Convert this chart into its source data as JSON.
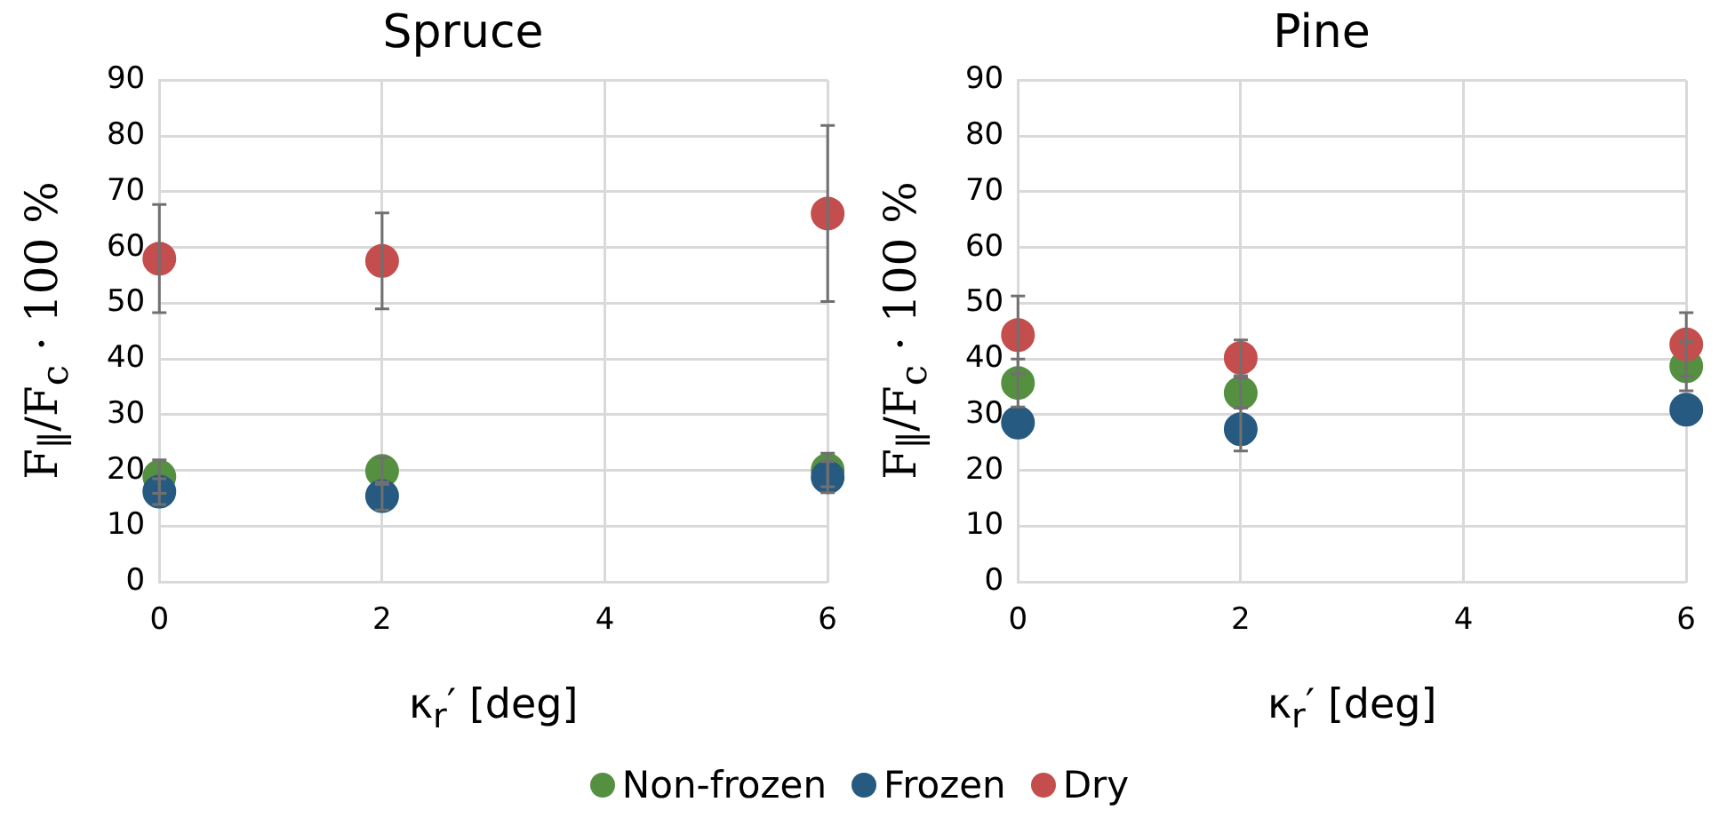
{
  "chart_data": [
    {
      "type": "scatter",
      "title": "Spruce",
      "xlabel": "κ$_{r}$′ [deg]",
      "ylabel": "F$_{∥}$/F$_{c}$ · 100 %",
      "xlim": [
        0,
        6
      ],
      "xticks": [
        0,
        2,
        4,
        6
      ],
      "ylim": [
        0,
        90
      ],
      "yticks": [
        0,
        10,
        20,
        30,
        40,
        50,
        60,
        70,
        80,
        90
      ],
      "grid": true,
      "marker": "circle",
      "legend": "bottom",
      "series": [
        {
          "name": "Non-frozen",
          "color": "#559040",
          "x": [
            0,
            2,
            6
          ],
          "values": [
            18.9,
            19.9,
            20.1
          ],
          "errors": [
            3,
            2.4,
            3
          ]
        },
        {
          "name": "Frozen",
          "color": "#265a80",
          "x": [
            0,
            2,
            6
          ],
          "values": [
            16.2,
            15.4,
            18.8
          ],
          "errors": [
            2.3,
            2.5,
            2.8
          ]
        },
        {
          "name": "Dry",
          "color": "#c44e4e",
          "x": [
            0,
            2,
            6
          ],
          "values": [
            58,
            57.6,
            66.1
          ],
          "errors": [
            9.7,
            8.6,
            15.8
          ]
        }
      ]
    },
    {
      "type": "scatter",
      "title": "Pine",
      "xlabel": "κ$_{r}$′ [deg]",
      "ylabel": "F$_{∥}$/F$_{c}$ · 100 %",
      "xlim": [
        0,
        6
      ],
      "xticks": [
        0,
        2,
        4,
        6
      ],
      "ylim": [
        0,
        90
      ],
      "yticks": [
        0,
        10,
        20,
        30,
        40,
        50,
        60,
        70,
        80,
        90
      ],
      "grid": true,
      "marker": "circle",
      "legend": "bottom",
      "series": [
        {
          "name": "Non-frozen",
          "color": "#559040",
          "x": [
            0,
            2,
            6
          ],
          "values": [
            35.7,
            33.9,
            38.7
          ],
          "errors": [
            4.3,
            2.7,
            4.4
          ]
        },
        {
          "name": "Frozen",
          "color": "#265a80",
          "x": [
            0,
            2,
            6
          ],
          "values": [
            28.6,
            27.4,
            30.9
          ],
          "errors": [
            null,
            3.9,
            null
          ]
        },
        {
          "name": "Dry",
          "color": "#c44e4e",
          "x": [
            0,
            2,
            6
          ],
          "values": [
            44.3,
            40.2,
            42.6
          ],
          "errors": [
            7,
            3.2,
            5.7
          ]
        }
      ]
    }
  ]
}
